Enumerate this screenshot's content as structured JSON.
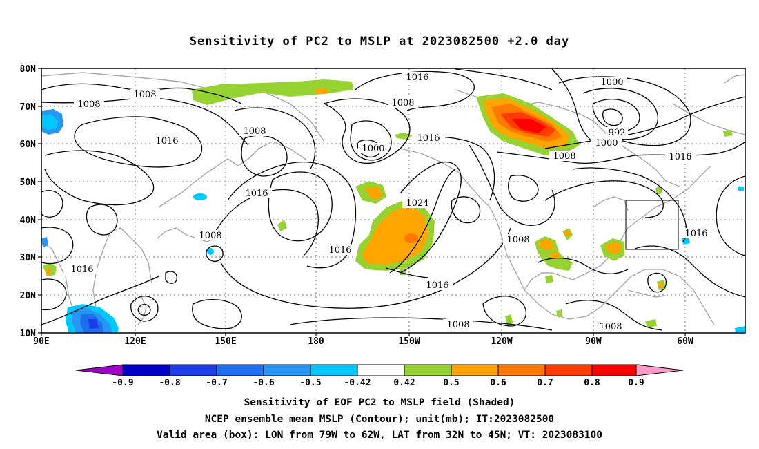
{
  "title": "Sensitivity of PC2 to MSLP at 2023082500 +2.0 day",
  "lat_ticks": [
    "80N",
    "70N",
    "60N",
    "50N",
    "40N",
    "30N",
    "20N",
    "10N"
  ],
  "lon_ticks": [
    "90E",
    "120E",
    "150E",
    "180",
    "150W",
    "120W",
    "90W",
    "60W"
  ],
  "colorbar": {
    "labels": [
      "-0.9",
      "-0.8",
      "-0.7",
      "-0.6",
      "-0.5",
      "-0.42",
      "0.42",
      "0.5",
      "0.6",
      "0.7",
      "0.8",
      "0.9"
    ],
    "colors": [
      "#a000c8",
      "#0000c8",
      "#1e3ce6",
      "#1e6ef0",
      "#2896f5",
      "#00c8ff",
      "#ffffff",
      "#96d232",
      "#ffa500",
      "#ff7800",
      "#ff3c00",
      "#ff0000",
      "#ff9bc8"
    ]
  },
  "contour_labels": [
    "1016",
    "1008",
    "1008",
    "1008",
    "1016",
    "1000",
    "1016",
    "1008",
    "1016",
    "1000",
    "992",
    "1000",
    "1008",
    "1016",
    "1016",
    "1024",
    "1016",
    "1016",
    "1008",
    "1008",
    "1016",
    "1008",
    "1008"
  ],
  "valid_box": {
    "lon": [
      "79W",
      "62W"
    ],
    "lat": [
      "32N",
      "45N"
    ]
  },
  "captions": [
    "Sensitivity of EOF PC2 to MSLP field (Shaded)",
    "NCEP ensemble mean MSLP (Contour); unit(mb); IT:2023082500",
    "Valid area (box): LON from 79W to 62W, LAT from 32N to 45N; VT: 2023083100"
  ]
}
